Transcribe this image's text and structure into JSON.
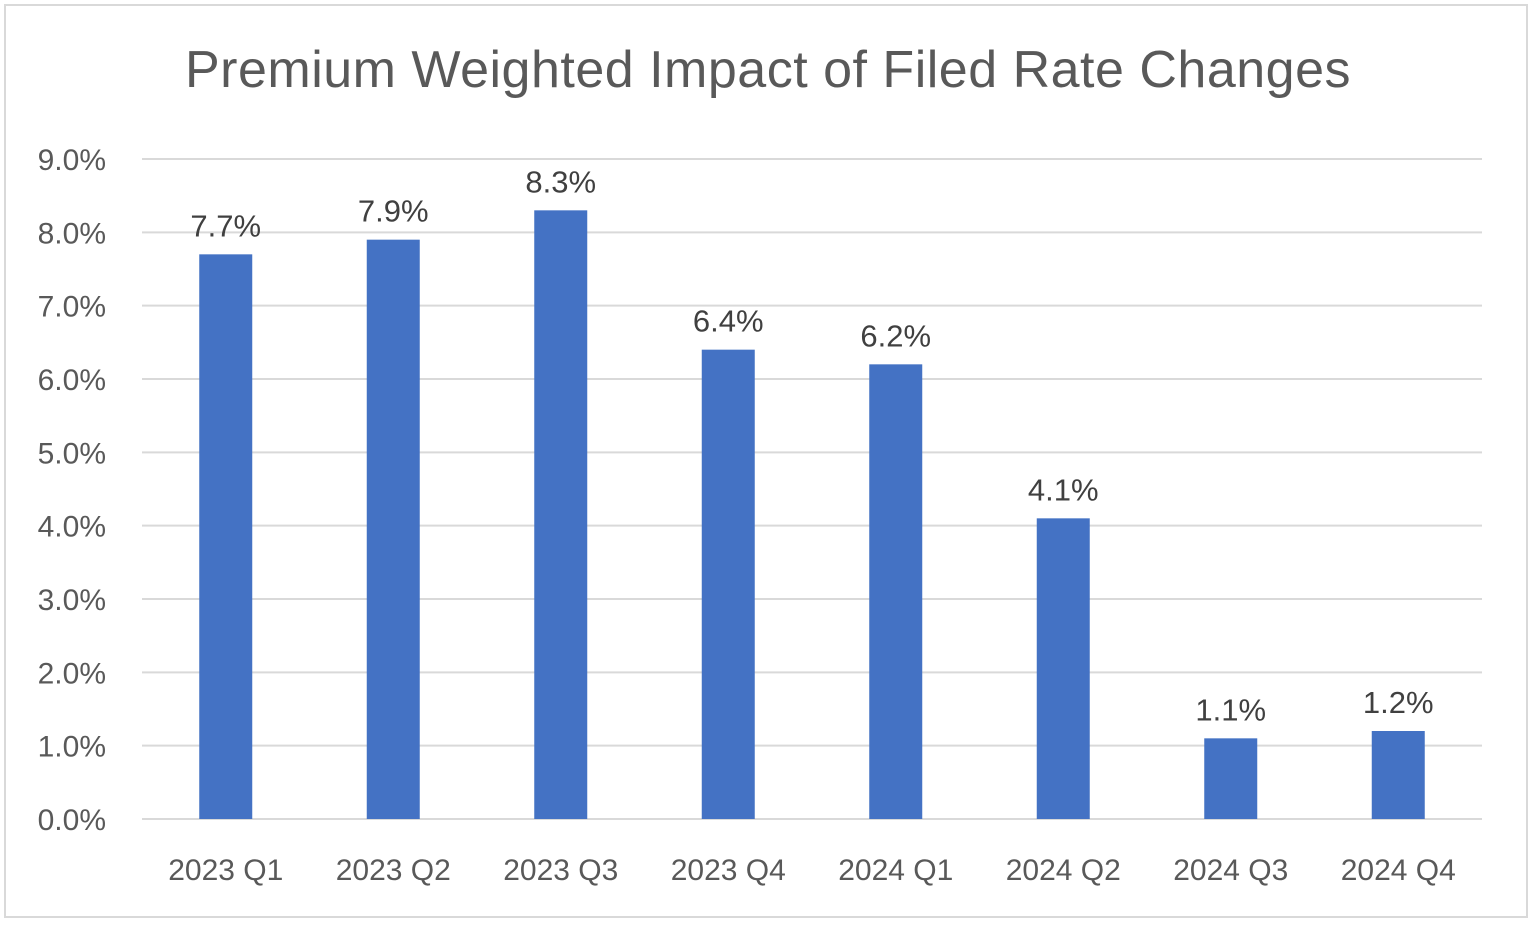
{
  "chart_data": {
    "type": "bar",
    "title": "Premium Weighted Impact of Filed Rate Changes",
    "xlabel": "",
    "ylabel": "",
    "categories": [
      "2023 Q1",
      "2023 Q2",
      "2023 Q3",
      "2023 Q4",
      "2024 Q1",
      "2024 Q2",
      "2024 Q3",
      "2024 Q4"
    ],
    "values": [
      7.7,
      7.9,
      8.3,
      6.4,
      6.2,
      4.1,
      1.1,
      1.2
    ],
    "data_labels": [
      "7.7%",
      "7.9%",
      "8.3%",
      "6.4%",
      "6.2%",
      "4.1%",
      "1.1%",
      "1.2%"
    ],
    "ylim": [
      0,
      9
    ],
    "y_ticks": [
      "0.0%",
      "1.0%",
      "2.0%",
      "3.0%",
      "4.0%",
      "5.0%",
      "6.0%",
      "7.0%",
      "8.0%",
      "9.0%"
    ],
    "grid": true,
    "legend": "none",
    "colors": {
      "bar": "#4472c4",
      "grid": "#d9d9d9",
      "axis_text": "#595959",
      "label_text": "#404040"
    }
  }
}
